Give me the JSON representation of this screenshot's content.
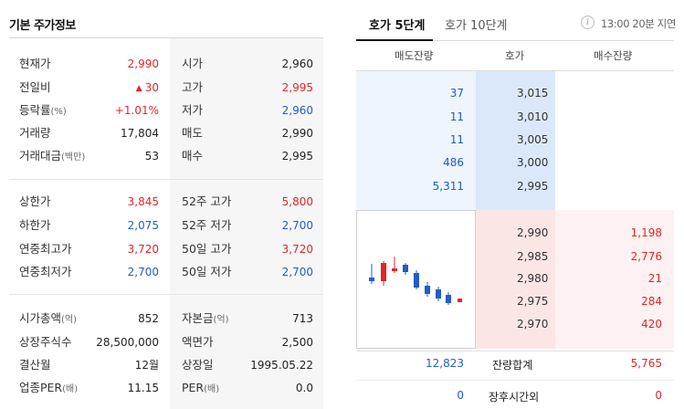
{
  "left": {
    "title": "기본 주가정보",
    "rows": [
      {
        "l_label": "현재가",
        "l_unit": "",
        "l_val": "2,990",
        "r_label": "시가",
        "r_unit": "",
        "r_val": "2,960"
      },
      {
        "l_label": "전일비",
        "l_unit": "",
        "l_val": "30",
        "r_label": "고가",
        "r_unit": "",
        "r_val": "2,995"
      },
      {
        "l_label": "등락률",
        "l_unit": "(%)",
        "l_val": "+1.01%",
        "r_label": "저가",
        "r_unit": "",
        "r_val": "2,960"
      },
      {
        "l_label": "거래량",
        "l_unit": "",
        "l_val": "17,804",
        "r_label": "매도",
        "r_unit": "",
        "r_val": "2,990"
      },
      {
        "l_label": "거래대금",
        "l_unit": "(백만)",
        "l_val": "53",
        "r_label": "매수",
        "r_unit": "",
        "r_val": "2,995"
      },
      {
        "l_label": "상한가",
        "l_unit": "",
        "l_val": "3,845",
        "r_label": "52주 고가",
        "r_unit": "",
        "r_val": "5,800"
      },
      {
        "l_label": "하한가",
        "l_unit": "",
        "l_val": "2,075",
        "r_label": "52주 저가",
        "r_unit": "",
        "r_val": "2,700"
      },
      {
        "l_label": "연중최고가",
        "l_unit": "",
        "l_val": "3,720",
        "r_label": "50일 고가",
        "r_unit": "",
        "r_val": "3,720"
      },
      {
        "l_label": "연중최저가",
        "l_unit": "",
        "l_val": "2,700",
        "r_label": "50일 저가",
        "r_unit": "",
        "r_val": "2,700"
      },
      {
        "l_label": "시가총액",
        "l_unit": "(억)",
        "l_val": "852",
        "r_label": "자본금",
        "r_unit": "(억)",
        "r_val": "713"
      },
      {
        "l_label": "상장주식수",
        "l_unit": "",
        "l_val": "28,500,000",
        "r_label": "액면가",
        "r_unit": "",
        "r_val": "2,500"
      },
      {
        "l_label": "결산월",
        "l_unit": "",
        "l_val": "12월",
        "r_label": "상장일",
        "r_unit": "",
        "r_val": "1995.05.22"
      },
      {
        "l_label": "업종PER",
        "l_unit": "(배)",
        "l_val": "11.15",
        "r_label": "PER",
        "r_unit": "(배)",
        "r_val": "0.0"
      }
    ]
  },
  "tabs": {
    "tab5": "호가 5단계",
    "tab10": "호가 10단계"
  },
  "info_icon": "info-icon",
  "delay_text": "13:00 20분 지연",
  "headers": {
    "ask_qty": "매도잔량",
    "price": "호가",
    "bid_qty": "매수잔량"
  },
  "asks": [
    {
      "qty": "37",
      "price": "3,015"
    },
    {
      "qty": "11",
      "price": "3,010"
    },
    {
      "qty": "11",
      "price": "3,005"
    },
    {
      "qty": "486",
      "price": "3,000"
    },
    {
      "qty": "5,311",
      "price": "2,995"
    }
  ],
  "bids": [
    {
      "price": "2,990",
      "qty": "1,198"
    },
    {
      "price": "2,985",
      "qty": "2,776"
    },
    {
      "price": "2,980",
      "qty": "21"
    },
    {
      "price": "2,975",
      "qty": "284"
    },
    {
      "price": "2,970",
      "qty": "420"
    }
  ],
  "totals": {
    "ask_total": "12,823",
    "total_label": "잔량합계",
    "bid_total": "5,765",
    "ask_after": "0",
    "after_label": "장후시간외",
    "bid_after": "0"
  },
  "colors": {
    "up": "#e4252a",
    "down": "#1f5dc7"
  }
}
